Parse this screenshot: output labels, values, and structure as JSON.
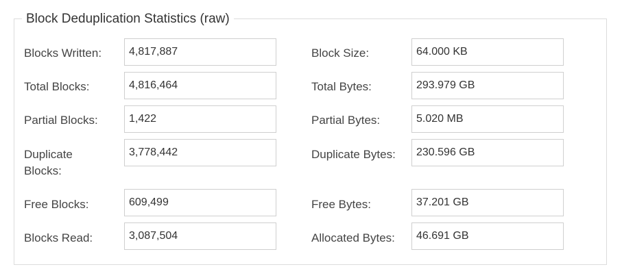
{
  "panel": {
    "title": "Block Deduplication Statistics (raw)"
  },
  "left": [
    {
      "label": "Blocks Written:",
      "value": "4,817,887"
    },
    {
      "label": "Total Blocks:",
      "value": "4,816,464"
    },
    {
      "label": "Partial Blocks:",
      "value": "1,422"
    },
    {
      "label": "Duplicate Blocks:",
      "value": "3,778,442"
    },
    {
      "label": "Free Blocks:",
      "value": "609,499"
    },
    {
      "label": "Blocks Read:",
      "value": "3,087,504"
    }
  ],
  "right": [
    {
      "label": "Block Size:",
      "value": "64.000 KB"
    },
    {
      "label": "Total Bytes:",
      "value": "293.979 GB"
    },
    {
      "label": "Partial Bytes:",
      "value": "5.020 MB"
    },
    {
      "label": "Duplicate Bytes:",
      "value": "230.596 GB"
    },
    {
      "label": "Free Bytes:",
      "value": "37.201 GB"
    },
    {
      "label": "Allocated Bytes:",
      "value": "46.691 GB"
    }
  ]
}
